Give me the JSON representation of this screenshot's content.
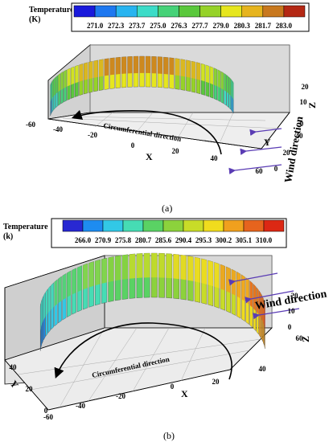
{
  "panel_a": {
    "legend_title": "Temperature",
    "legend_unit": "(K)",
    "legend_values": [
      "271.0",
      "272.3",
      "273.7",
      "275.0",
      "276.3",
      "277.7",
      "279.0",
      "280.3",
      "281.7",
      "283.0"
    ],
    "legend_colors": [
      "#1a1adc",
      "#1e78f0",
      "#28b4f0",
      "#3cdcc8",
      "#46d278",
      "#5ac83c",
      "#96d228",
      "#e6e61e",
      "#e6b41e",
      "#c8781e",
      "#b42814"
    ],
    "x_axis_label": "X",
    "y_axis_label": "Y",
    "z_axis_label": "Z",
    "x_ticks": [
      "-60",
      "-40",
      "-20",
      "0",
      "20",
      "40",
      "60"
    ],
    "y_ticks": [
      "0",
      "20",
      "40"
    ],
    "z_ticks": [
      "0",
      "10",
      "20"
    ],
    "arrow_label": "Circumferential direction",
    "wind_label": "Wind direction",
    "caption": "(a)"
  },
  "panel_b": {
    "legend_title": "Temperature",
    "legend_unit": "(k)",
    "legend_values": [
      "266.0",
      "270.9",
      "275.8",
      "280.7",
      "285.6",
      "290.4",
      "295.3",
      "300.2",
      "305.1",
      "310.0"
    ],
    "legend_colors": [
      "#2828d2",
      "#1e8cf0",
      "#32c8e6",
      "#46dcb4",
      "#5ad264",
      "#8cd23c",
      "#c8dc28",
      "#f0dc1e",
      "#f0a01e",
      "#e6641e",
      "#dc2814"
    ],
    "x_axis_label": "X",
    "y_axis_label": "Y",
    "z_axis_label": "Z",
    "x_ticks": [
      "-60",
      "-40",
      "-20",
      "0",
      "20",
      "40",
      "60"
    ],
    "y_ticks": [
      "0",
      "20",
      "40"
    ],
    "z_ticks": [
      "0",
      "10",
      "20"
    ],
    "arrow_label": "Circumferential direction",
    "wind_label": "Wind direction",
    "caption": "(b)"
  }
}
